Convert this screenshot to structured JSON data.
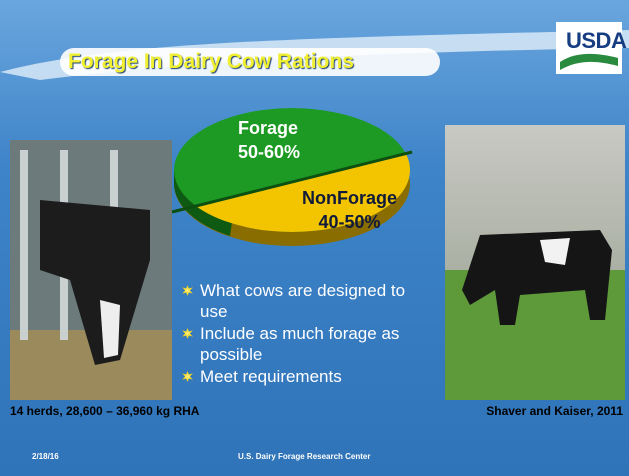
{
  "header": {
    "title": "Forage In Dairy Cow Rations",
    "logo": "USDA"
  },
  "pie": {
    "slices": [
      {
        "label": "Forage",
        "range": "50-60%"
      },
      {
        "label": "NonForage",
        "range": "40-50%"
      }
    ]
  },
  "bullets": [
    "What cows are designed to use",
    "Include as much forage as possible",
    "Meet requirements"
  ],
  "notes": {
    "left": "14 herds, 28,600 – 36,960 kg RHA",
    "right": "Shaver and Kaiser, 2011"
  },
  "footer": {
    "date": "2/18/16",
    "center": "U.S. Dairy Forage Research Center"
  }
}
